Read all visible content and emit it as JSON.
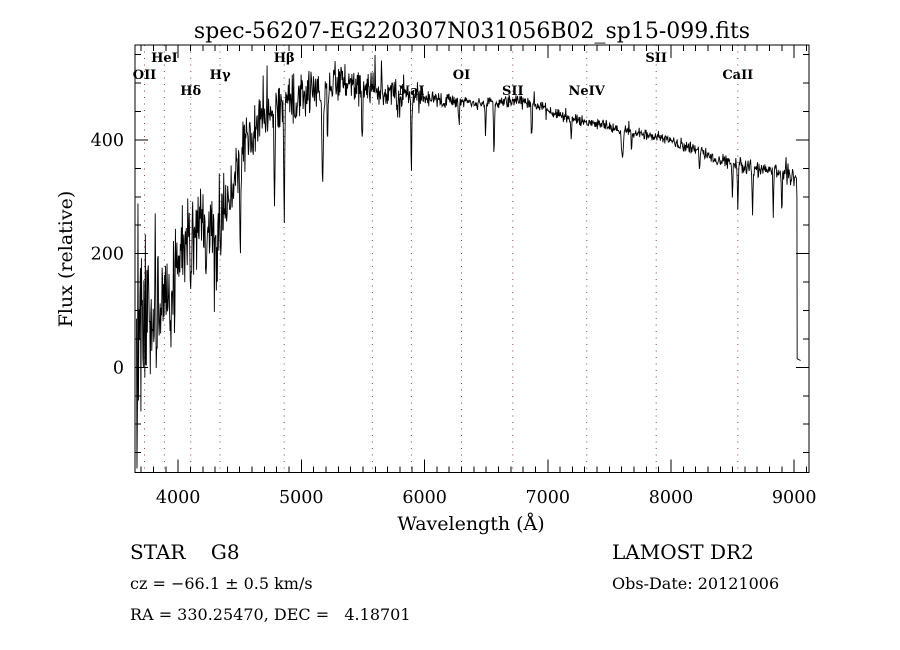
{
  "title": "spec-56207-EG220307N031056B02_sp15-099.fits",
  "chart_data": {
    "type": "line",
    "title": "spec-56207-EG220307N031056B02_sp15-099.fits",
    "xlabel": "Wavelength (Å)",
    "ylabel": "Flux (relative)",
    "xlim": [
      3650,
      9120
    ],
    "ylim": [
      -185,
      567
    ],
    "x_ticks": [
      4000,
      5000,
      6000,
      7000,
      8000,
      9000
    ],
    "y_ticks": [
      0,
      200,
      400
    ],
    "x_minor_step": 100,
    "y_minor_step": 50,
    "grid": "vertical dotted lines at marked spectral wavelengths",
    "legend": "none",
    "colors": {
      "background": "#ffffff",
      "axis": "#000000",
      "text": "#000000",
      "gridline": "#a33b3b",
      "spectrum": "#000000"
    },
    "spectral_lines": [
      {
        "label": "OII",
        "wavelength": 3727,
        "row": 1
      },
      {
        "label": "HeI",
        "wavelength": 3889,
        "row": 0
      },
      {
        "label": "Hδ",
        "wavelength": 4102,
        "row": 2
      },
      {
        "label": "Hγ",
        "wavelength": 4341,
        "row": 1
      },
      {
        "label": "Hβ",
        "wavelength": 4861,
        "row": 0
      },
      {
        "label": "",
        "wavelength": 5577,
        "row": -1
      },
      {
        "label": "NaI",
        "wavelength": 5893,
        "row": 2
      },
      {
        "label": "OI",
        "wavelength": 6300,
        "row": 1
      },
      {
        "label": "SII",
        "wavelength": 6716,
        "row": 2
      },
      {
        "label": "NeIV",
        "wavelength": 7316,
        "row": 2
      },
      {
        "label": "SII",
        "wavelength": 7880,
        "row": 0
      },
      {
        "label": "CaII",
        "wavelength": 8542,
        "row": 1
      }
    ],
    "series": [
      {
        "name": "spectrum",
        "sample_step": 4,
        "noise_seed": 13,
        "spike_probability": 0.05,
        "spike_factor": 2.3,
        "clamp": [
          -178,
          566
        ],
        "trend_points": [
          [
            3662,
            110
          ],
          [
            3700,
            130
          ],
          [
            3740,
            95
          ],
          [
            3800,
            85
          ],
          [
            3860,
            95
          ],
          [
            3920,
            140
          ],
          [
            3980,
            175
          ],
          [
            4040,
            215
          ],
          [
            4100,
            240
          ],
          [
            4160,
            252
          ],
          [
            4220,
            246
          ],
          [
            4280,
            250
          ],
          [
            4340,
            264
          ],
          [
            4400,
            293
          ],
          [
            4460,
            328
          ],
          [
            4520,
            372
          ],
          [
            4580,
            404
          ],
          [
            4640,
            424
          ],
          [
            4720,
            444
          ],
          [
            4800,
            458
          ],
          [
            4900,
            470
          ],
          [
            5000,
            480
          ],
          [
            5100,
            488
          ],
          [
            5200,
            496
          ],
          [
            5300,
            502
          ],
          [
            5400,
            497
          ],
          [
            5500,
            493
          ],
          [
            5600,
            490
          ],
          [
            5700,
            487
          ],
          [
            5800,
            483
          ],
          [
            5900,
            478
          ],
          [
            6000,
            473
          ],
          [
            6150,
            469
          ],
          [
            6300,
            466
          ],
          [
            6450,
            465
          ],
          [
            6600,
            467
          ],
          [
            6750,
            470
          ],
          [
            6870,
            466
          ],
          [
            6950,
            457
          ],
          [
            7050,
            447
          ],
          [
            7150,
            440
          ],
          [
            7250,
            435
          ],
          [
            7350,
            431
          ],
          [
            7450,
            426
          ],
          [
            7550,
            420
          ],
          [
            7650,
            415
          ],
          [
            7750,
            411
          ],
          [
            7850,
            408
          ],
          [
            7950,
            402
          ],
          [
            8050,
            394
          ],
          [
            8150,
            386
          ],
          [
            8250,
            377
          ],
          [
            8350,
            369
          ],
          [
            8450,
            361
          ],
          [
            8550,
            356
          ],
          [
            8650,
            351
          ],
          [
            8750,
            347
          ],
          [
            8850,
            344
          ],
          [
            8950,
            341
          ],
          [
            9020,
            334
          ]
        ],
        "noise_amplitude": [
          [
            3662,
            330
          ],
          [
            3700,
            320
          ],
          [
            3740,
            150
          ],
          [
            3800,
            105
          ],
          [
            3860,
            105
          ],
          [
            3920,
            100
          ],
          [
            4000,
            92
          ],
          [
            4100,
            90
          ],
          [
            4250,
            88
          ],
          [
            4400,
            75
          ],
          [
            4550,
            65
          ],
          [
            4700,
            58
          ],
          [
            4850,
            55
          ],
          [
            5000,
            46
          ],
          [
            5150,
            43
          ],
          [
            5300,
            40
          ],
          [
            5450,
            35
          ],
          [
            5600,
            32
          ],
          [
            5750,
            27
          ],
          [
            5900,
            22
          ],
          [
            6050,
            18
          ],
          [
            6200,
            16
          ],
          [
            6400,
            15
          ],
          [
            6700,
            13
          ],
          [
            7000,
            12
          ],
          [
            7300,
            12
          ],
          [
            7600,
            12
          ],
          [
            7900,
            12
          ],
          [
            8200,
            13
          ],
          [
            8500,
            15
          ],
          [
            8800,
            19
          ],
          [
            9020,
            24
          ]
        ],
        "absorption_dips": [
          [
            3934,
            8,
            70
          ],
          [
            3969,
            7,
            60
          ],
          [
            4102,
            9,
            70
          ],
          [
            4227,
            5,
            55
          ],
          [
            4310,
            11,
            70
          ],
          [
            4341,
            7,
            70
          ],
          [
            4505,
            6,
            170
          ],
          [
            4782,
            5,
            160
          ],
          [
            4861,
            6,
            190
          ],
          [
            5172,
            9,
            150
          ],
          [
            5212,
            5,
            80
          ],
          [
            5495,
            6,
            95
          ],
          [
            5780,
            5,
            40
          ],
          [
            5893,
            5,
            140
          ],
          [
            6280,
            5,
            45
          ],
          [
            6495,
            5,
            55
          ],
          [
            6563,
            6,
            85
          ],
          [
            6870,
            6,
            45
          ],
          [
            7190,
            7,
            30
          ],
          [
            7605,
            10,
            48
          ],
          [
            7680,
            5,
            25
          ],
          [
            8230,
            6,
            35
          ],
          [
            8498,
            5,
            60
          ],
          [
            8542,
            5,
            70
          ],
          [
            8662,
            5,
            85
          ],
          [
            8830,
            4,
            80
          ],
          [
            8900,
            4,
            82
          ]
        ],
        "end_drop": [
          [
            9022,
            300
          ],
          [
            9024,
            15
          ],
          [
            9052,
            12
          ]
        ]
      }
    ]
  },
  "footer": {
    "class_type": "STAR    G8",
    "cz": "cz = −66.1 ± 0.5 km/s",
    "radec": "RA = 330.25470, DEC =   4.18701",
    "survey": "LAMOST DR2",
    "obs_date": "Obs-Date: 20121006"
  }
}
